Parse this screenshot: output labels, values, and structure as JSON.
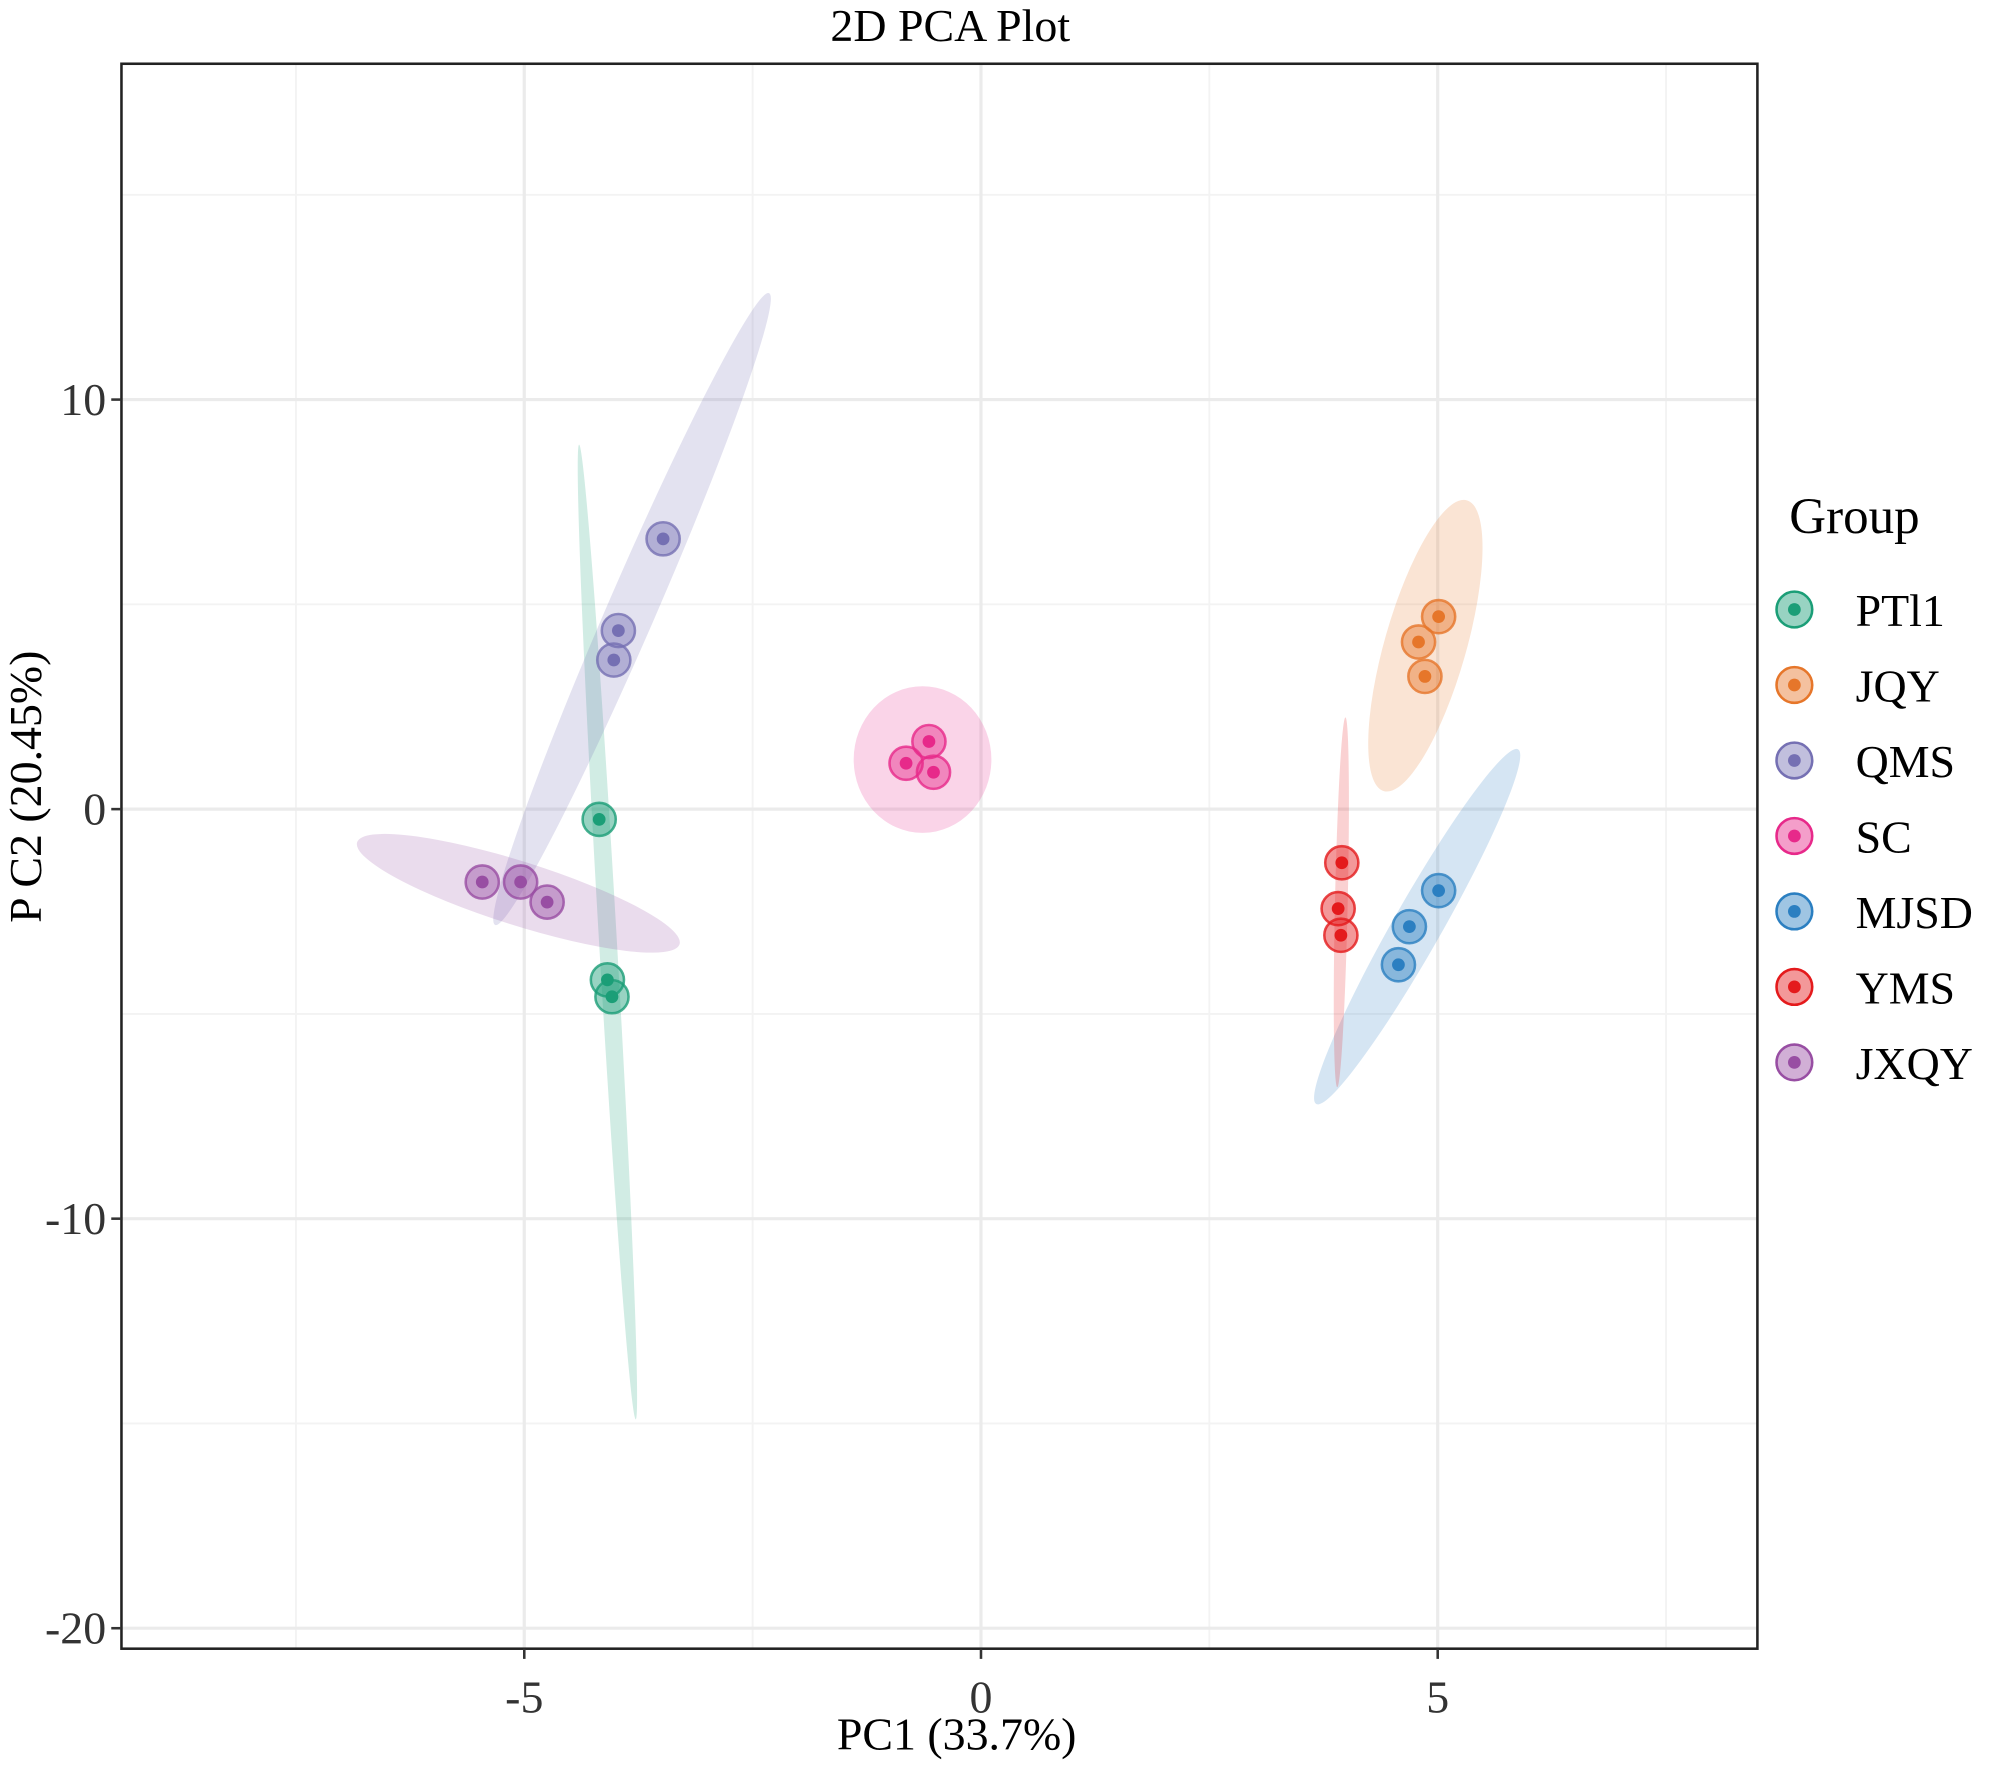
{
  "chart_data": {
    "type": "scatter",
    "title": "2D PCA Plot",
    "xlabel": "PC1 (33.7%)",
    "ylabel": "P C2 (20.45%)",
    "xlim": [
      -9.41,
      8.5
    ],
    "ylim": [
      -20.5,
      18.2
    ],
    "xticks": [
      -5,
      0,
      5
    ],
    "yticks": [
      -20,
      -10,
      0,
      10
    ],
    "grid": true,
    "legend": {
      "title": "Group",
      "placement": "right"
    },
    "series": [
      {
        "name": "PTl1",
        "color": "#1b9e77",
        "points": [
          [
            -4.18,
            -0.25
          ],
          [
            -4.09,
            -4.17
          ],
          [
            -4.04,
            -4.58
          ]
        ],
        "ellipse_tips": [
          [
            -4.4,
            8.9
          ],
          [
            -3.78,
            -14.9
          ]
        ]
      },
      {
        "name": "JQY",
        "color": "#e6762a",
        "points": [
          [
            5.01,
            4.7
          ],
          [
            4.79,
            4.08
          ],
          [
            4.86,
            3.24
          ]
        ],
        "ellipse_tips": [
          [
            5.32,
            7.54
          ],
          [
            4.41,
            0.44
          ]
        ]
      },
      {
        "name": "QMS",
        "color": "#7570b3",
        "points": [
          [
            -3.48,
            6.6
          ],
          [
            -3.97,
            4.36
          ],
          [
            -4.02,
            3.64
          ]
        ],
        "ellipse_tips": [
          [
            -2.32,
            12.6
          ],
          [
            -5.32,
            -2.83
          ]
        ]
      },
      {
        "name": "SC",
        "color": "#e7298a",
        "points": [
          [
            -0.57,
            1.65
          ],
          [
            -0.82,
            1.12
          ],
          [
            -0.52,
            0.9
          ]
        ],
        "ellipse_tips": [
          [
            -0.64,
            3.0
          ],
          [
            -0.64,
            -0.58
          ]
        ]
      },
      {
        "name": "MJSD",
        "color": "#2b7fc1",
        "points": [
          [
            5.01,
            -1.99
          ],
          [
            4.69,
            -2.87
          ],
          [
            4.57,
            -3.8
          ]
        ],
        "ellipse_tips": [
          [
            5.88,
            1.46
          ],
          [
            3.67,
            -7.2
          ]
        ]
      },
      {
        "name": "YMS",
        "color": "#e41a1c",
        "points": [
          [
            3.95,
            -1.31
          ],
          [
            3.91,
            -2.43
          ],
          [
            3.94,
            -3.08
          ]
        ],
        "ellipse_tips": [
          [
            3.99,
            2.24
          ],
          [
            3.9,
            -6.79
          ]
        ]
      },
      {
        "name": "JXQY",
        "color": "#984ea3",
        "points": [
          [
            -5.46,
            -1.78
          ],
          [
            -5.04,
            -1.78
          ],
          [
            -4.75,
            -2.27
          ]
        ],
        "ellipse_tips": [
          [
            -6.83,
            -0.81
          ],
          [
            -3.3,
            -3.3
          ]
        ]
      }
    ]
  }
}
